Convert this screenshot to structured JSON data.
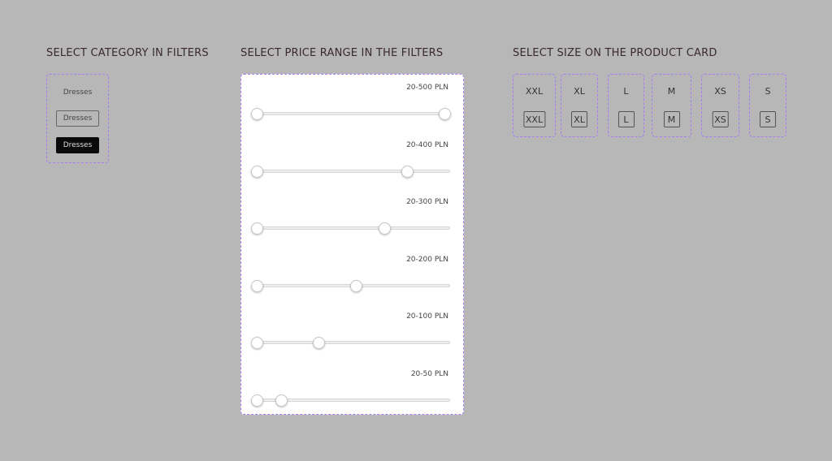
{
  "titles": {
    "category": "SELECT CATEGORY IN FILTERS",
    "price": "SELECT PRICE RANGE IN THE FILTERS",
    "size": "SELECT SIZE ON THE PRODUCT CARD"
  },
  "category": {
    "states": [
      {
        "label": "Dresses",
        "state": "default"
      },
      {
        "label": "Dresses",
        "state": "hover"
      },
      {
        "label": "Dresses",
        "state": "selected"
      }
    ]
  },
  "price": {
    "sliders": [
      {
        "label": "20-500 PLN",
        "lower_fraction": 0,
        "upper_fraction": 1.0
      },
      {
        "label": "20-400 PLN",
        "lower_fraction": 0,
        "upper_fraction": 0.8
      },
      {
        "label": "20-300 PLN",
        "lower_fraction": 0,
        "upper_fraction": 0.68
      },
      {
        "label": "20-200 PLN",
        "lower_fraction": 0,
        "upper_fraction": 0.53
      },
      {
        "label": "20-100 PLN",
        "lower_fraction": 0,
        "upper_fraction": 0.33
      },
      {
        "label": "20-50 PLN",
        "lower_fraction": 0,
        "upper_fraction": 0.13
      }
    ]
  },
  "sizes": [
    {
      "label": "XXL",
      "button": "XXL"
    },
    {
      "label": "XL",
      "button": "XL"
    },
    {
      "label": "L",
      "button": "L"
    },
    {
      "label": "M",
      "button": "M"
    },
    {
      "label": "XS",
      "button": "XS"
    },
    {
      "label": "S",
      "button": "S"
    }
  ],
  "colors": {
    "dashed_border": "#a67ef0",
    "background": "#b7b7b7",
    "selected": "#0a0a0a"
  }
}
